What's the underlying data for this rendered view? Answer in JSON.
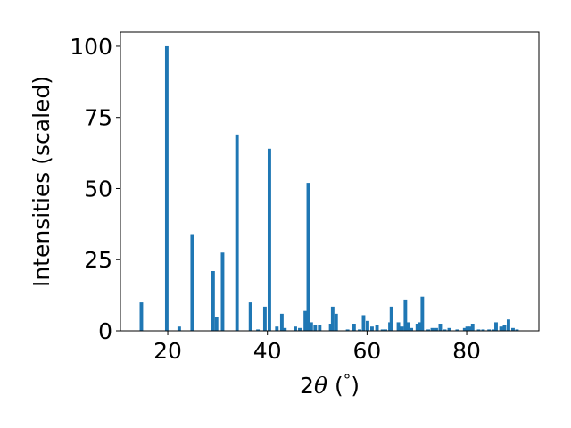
{
  "chart_data": {
    "type": "bar",
    "xlabel": "2θ (°)",
    "ylabel": "Intensities (scaled)",
    "xlim": [
      10.5,
      94.5
    ],
    "ylim": [
      0,
      105
    ],
    "xticks": [
      20,
      40,
      60,
      80
    ],
    "yticks": [
      0,
      25,
      50,
      75,
      100
    ],
    "grid": false,
    "bar_color": "#1f77b4",
    "bar_width": 0.7,
    "x": [
      14.7,
      19.8,
      22.3,
      24.9,
      29.1,
      29.8,
      31.0,
      33.9,
      36.6,
      38.1,
      39.5,
      40.4,
      41.9,
      42.9,
      43.5,
      45.6,
      46.5,
      47.6,
      48.2,
      48.8,
      49.6,
      50.5,
      52.7,
      53.1,
      53.8,
      56.1,
      57.4,
      58.5,
      59.3,
      60.1,
      61.0,
      62.0,
      63.1,
      63.7,
      64.6,
      64.9,
      66.3,
      67.0,
      67.7,
      68.3,
      68.9,
      70.1,
      70.6,
      71.1,
      72.3,
      73.1,
      73.9,
      74.7,
      75.6,
      76.5,
      78.1,
      79.6,
      80.1,
      80.7,
      81.2,
      82.4,
      83.3,
      84.5,
      85.4,
      85.9,
      86.9,
      87.6,
      88.4,
      89.3,
      90.1
    ],
    "values": [
      10.0,
      100.0,
      1.5,
      34.0,
      21.0,
      5.0,
      27.5,
      69.0,
      10.0,
      0.5,
      8.5,
      64.0,
      1.5,
      6.0,
      1.0,
      1.5,
      1.0,
      7.0,
      52.0,
      3.0,
      2.0,
      2.0,
      2.5,
      8.5,
      6.0,
      0.5,
      2.5,
      0.5,
      5.5,
      3.5,
      1.5,
      2.0,
      0.5,
      0.5,
      3.0,
      8.5,
      3.0,
      1.5,
      11.0,
      3.0,
      1.0,
      2.5,
      3.0,
      12.0,
      0.5,
      1.0,
      1.0,
      2.5,
      0.5,
      1.0,
      0.5,
      1.0,
      1.5,
      1.5,
      2.5,
      0.5,
      0.5,
      0.5,
      0.5,
      3.0,
      1.5,
      2.0,
      4.0,
      1.0,
      0.5
    ]
  }
}
